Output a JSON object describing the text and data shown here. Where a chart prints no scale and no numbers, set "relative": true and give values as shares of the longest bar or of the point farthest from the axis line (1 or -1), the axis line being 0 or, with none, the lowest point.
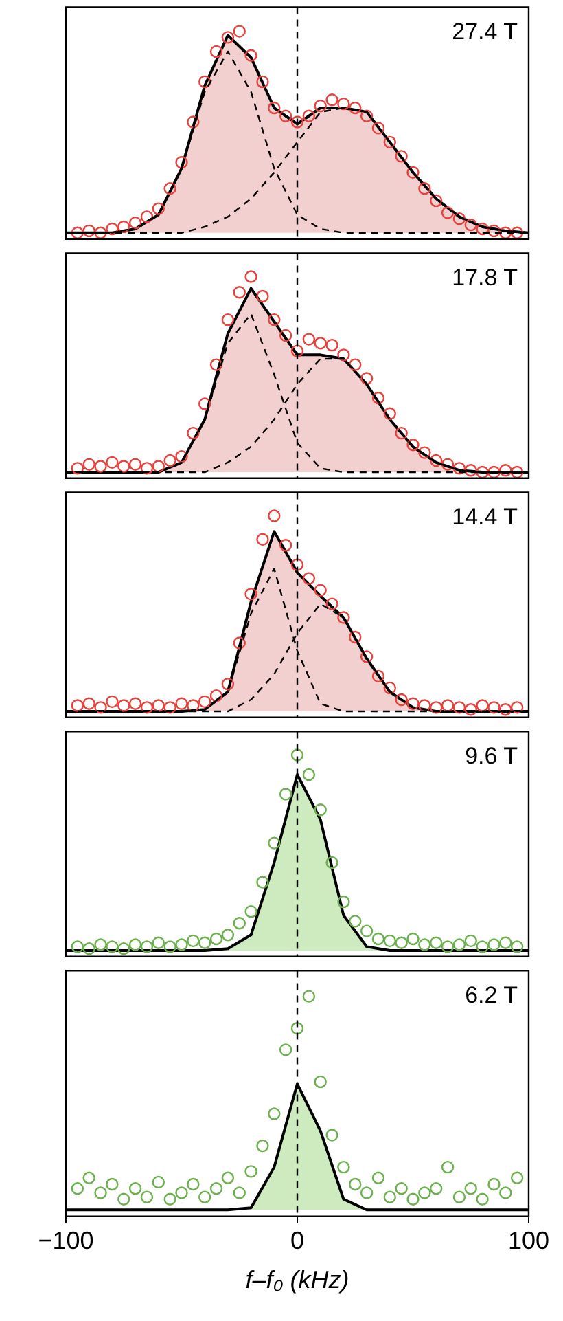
{
  "chart_data": [
    {
      "type": "line",
      "relative": true,
      "xlim": [
        -100,
        100
      ],
      "xticks": [
        -100,
        0,
        100
      ],
      "tick_labels": false,
      "annotations": [
        "27.4 T"
      ],
      "ref_lines": [
        {
          "axis": "x",
          "value": 0,
          "color": "#000000",
          "line_style": "dashed"
        }
      ],
      "series": [
        {
          "type": "scatter",
          "color": "#e8413c",
          "marker": "circle",
          "x": [
            -95,
            -90,
            -85,
            -80,
            -75,
            -70,
            -65,
            -60,
            -55,
            -50,
            -45,
            -40,
            -35,
            -30,
            -25,
            -20,
            -15,
            -10,
            -5,
            0,
            5,
            10,
            15,
            20,
            25,
            30,
            35,
            40,
            45,
            50,
            55,
            60,
            65,
            70,
            75,
            80,
            85,
            90,
            95
          ],
          "values": [
            0,
            0.01,
            0,
            0.02,
            0.03,
            0.05,
            0.08,
            0.12,
            0.22,
            0.35,
            0.55,
            0.75,
            0.9,
            0.97,
            1,
            0.88,
            0.75,
            0.62,
            0.58,
            0.55,
            0.58,
            0.63,
            0.66,
            0.64,
            0.62,
            0.58,
            0.52,
            0.45,
            0.38,
            0.3,
            0.22,
            0.16,
            0.1,
            0.07,
            0.04,
            0.02,
            0.01,
            0,
            0
          ]
        },
        {
          "color": "#000000",
          "line_style": "dashed",
          "x": [
            -100,
            -90,
            -80,
            -70,
            -60,
            -50,
            -40,
            -30,
            -20,
            -10,
            0,
            10,
            20,
            30,
            40,
            50,
            60,
            70,
            80,
            90,
            100
          ],
          "values": [
            0,
            0,
            0,
            0.02,
            0.09,
            0.32,
            0.7,
            0.9,
            0.7,
            0.32,
            0.09,
            0.02,
            0,
            0,
            0,
            0,
            0,
            0,
            0,
            0,
            0
          ]
        },
        {
          "color": "#000000",
          "line_style": "dashed",
          "x": [
            -100,
            -90,
            -80,
            -70,
            -60,
            -50,
            -40,
            -30,
            -20,
            -10,
            0,
            10,
            20,
            30,
            40,
            50,
            60,
            70,
            80,
            90,
            100
          ],
          "values": [
            0,
            0,
            0,
            0,
            0,
            0,
            0.03,
            0.08,
            0.17,
            0.3,
            0.45,
            0.6,
            0.62,
            0.6,
            0.45,
            0.3,
            0.17,
            0.08,
            0.03,
            0.01,
            0
          ]
        },
        {
          "type": "area",
          "color": "#f2d0d0",
          "x": [
            -100,
            -90,
            -80,
            -70,
            -60,
            -50,
            -40,
            -30,
            -20,
            -10,
            0,
            10,
            20,
            30,
            40,
            50,
            60,
            70,
            80,
            90,
            100
          ],
          "values": [
            0,
            0,
            0,
            0.02,
            0.09,
            0.32,
            0.73,
            0.98,
            0.87,
            0.62,
            0.54,
            0.62,
            0.62,
            0.6,
            0.45,
            0.3,
            0.17,
            0.08,
            0.03,
            0.01,
            0
          ]
        }
      ]
    },
    {
      "type": "line",
      "relative": true,
      "xlim": [
        -100,
        100
      ],
      "xticks": [
        -100,
        0,
        100
      ],
      "tick_labels": false,
      "annotations": [
        "17.8 T"
      ],
      "ref_lines": [
        {
          "axis": "x",
          "value": 0,
          "color": "#000000",
          "line_style": "dashed"
        }
      ],
      "series": [
        {
          "type": "scatter",
          "color": "#e8413c",
          "marker": "circle",
          "x": [
            -95,
            -90,
            -85,
            -80,
            -75,
            -70,
            -65,
            -60,
            -55,
            -50,
            -45,
            -40,
            -35,
            -30,
            -25,
            -20,
            -15,
            -10,
            -5,
            0,
            5,
            10,
            15,
            20,
            25,
            30,
            35,
            40,
            45,
            50,
            55,
            60,
            65,
            70,
            75,
            80,
            85,
            90,
            95
          ],
          "values": [
            0.02,
            0.04,
            0.03,
            0.05,
            0.03,
            0.04,
            0.02,
            0.03,
            0.06,
            0.08,
            0.2,
            0.35,
            0.55,
            0.78,
            0.92,
            1,
            0.9,
            0.78,
            0.7,
            0.62,
            0.68,
            0.66,
            0.65,
            0.6,
            0.55,
            0.48,
            0.38,
            0.3,
            0.2,
            0.14,
            0.1,
            0.06,
            0.04,
            0.02,
            0.01,
            0,
            0,
            0.01,
            0
          ]
        },
        {
          "color": "#000000",
          "line_style": "dashed",
          "x": [
            -100,
            -90,
            -80,
            -70,
            -60,
            -50,
            -40,
            -30,
            -20,
            -10,
            0,
            10,
            20,
            30,
            40,
            50,
            60,
            70,
            80,
            90,
            100
          ],
          "values": [
            0,
            0,
            0,
            0,
            0,
            0.05,
            0.27,
            0.66,
            0.81,
            0.5,
            0.15,
            0.02,
            0,
            0,
            0,
            0,
            0,
            0,
            0,
            0,
            0
          ]
        },
        {
          "color": "#000000",
          "line_style": "dashed",
          "x": [
            -100,
            -90,
            -80,
            -70,
            -60,
            -50,
            -40,
            -30,
            -20,
            -10,
            0,
            10,
            20,
            30,
            40,
            50,
            60,
            70,
            80,
            90,
            100
          ],
          "values": [
            0,
            0,
            0,
            0,
            0,
            0,
            0,
            0.05,
            0.13,
            0.27,
            0.45,
            0.58,
            0.58,
            0.45,
            0.27,
            0.13,
            0.05,
            0.01,
            0,
            0,
            0
          ]
        },
        {
          "type": "area",
          "color": "#f2d0d0",
          "x": [
            -100,
            -90,
            -80,
            -70,
            -60,
            -50,
            -40,
            -30,
            -20,
            -10,
            0,
            10,
            20,
            30,
            40,
            50,
            60,
            70,
            80,
            90,
            100
          ],
          "values": [
            0,
            0,
            0,
            0,
            0,
            0.05,
            0.27,
            0.71,
            0.94,
            0.77,
            0.6,
            0.6,
            0.58,
            0.45,
            0.27,
            0.13,
            0.05,
            0.01,
            0,
            0,
            0
          ]
        }
      ]
    },
    {
      "type": "line",
      "relative": true,
      "xlim": [
        -100,
        100
      ],
      "xticks": [
        -100,
        0,
        100
      ],
      "tick_labels": false,
      "annotations": [
        "14.4 T"
      ],
      "ref_lines": [
        {
          "axis": "x",
          "value": 0,
          "color": "#000000",
          "line_style": "dashed"
        }
      ],
      "series": [
        {
          "type": "scatter",
          "color": "#e8413c",
          "marker": "circle",
          "x": [
            -95,
            -90,
            -85,
            -80,
            -75,
            -70,
            -65,
            -60,
            -55,
            -50,
            -45,
            -40,
            -35,
            -30,
            -25,
            -20,
            -15,
            -10,
            -5,
            0,
            5,
            10,
            15,
            20,
            25,
            30,
            35,
            40,
            45,
            50,
            55,
            60,
            65,
            70,
            75,
            80,
            85,
            90,
            95
          ],
          "values": [
            0.03,
            0.04,
            0.02,
            0.05,
            0.03,
            0.04,
            0.02,
            0.03,
            0.02,
            0.04,
            0.03,
            0.05,
            0.08,
            0.14,
            0.35,
            0.6,
            0.88,
            1,
            0.85,
            0.75,
            0.68,
            0.62,
            0.55,
            0.48,
            0.38,
            0.28,
            0.18,
            0.12,
            0.06,
            0.04,
            0.03,
            0.02,
            0.03,
            0.02,
            0.01,
            0.03,
            0.02,
            0.01,
            0.02
          ]
        },
        {
          "color": "#000000",
          "line_style": "dashed",
          "x": [
            -100,
            -90,
            -80,
            -70,
            -60,
            -50,
            -40,
            -30,
            -20,
            -10,
            0,
            10,
            20,
            30,
            40,
            50,
            60,
            70,
            80,
            90,
            100
          ],
          "values": [
            0,
            0,
            0,
            0,
            0,
            0,
            0.01,
            0.1,
            0.5,
            0.73,
            0.31,
            0.04,
            0,
            0,
            0,
            0,
            0,
            0,
            0,
            0,
            0
          ]
        },
        {
          "color": "#000000",
          "line_style": "dashed",
          "x": [
            -100,
            -90,
            -80,
            -70,
            -60,
            -50,
            -40,
            -30,
            -20,
            -10,
            0,
            10,
            20,
            30,
            40,
            50,
            60,
            70,
            80,
            90,
            100
          ],
          "values": [
            0,
            0,
            0,
            0,
            0,
            0,
            0,
            0,
            0.06,
            0.19,
            0.4,
            0.55,
            0.48,
            0.27,
            0.1,
            0.02,
            0,
            0,
            0,
            0,
            0
          ]
        },
        {
          "type": "area",
          "color": "#f2d0d0",
          "x": [
            -100,
            -90,
            -80,
            -70,
            -60,
            -50,
            -40,
            -30,
            -20,
            -10,
            0,
            10,
            20,
            30,
            40,
            50,
            60,
            70,
            80,
            90,
            100
          ],
          "values": [
            0,
            0,
            0,
            0,
            0,
            0,
            0.01,
            0.1,
            0.56,
            0.92,
            0.71,
            0.59,
            0.48,
            0.27,
            0.1,
            0.02,
            0,
            0,
            0,
            0,
            0
          ]
        }
      ]
    },
    {
      "type": "line",
      "relative": true,
      "xlim": [
        -100,
        100
      ],
      "xticks": [
        -100,
        0,
        100
      ],
      "tick_labels": false,
      "annotations": [
        "9.6 T"
      ],
      "ref_lines": [
        {
          "axis": "x",
          "value": 0,
          "color": "#000000",
          "line_style": "dashed"
        }
      ],
      "series": [
        {
          "type": "scatter",
          "color": "#6ab04c",
          "marker": "circle",
          "x": [
            -95,
            -90,
            -85,
            -80,
            -75,
            -70,
            -65,
            -60,
            -55,
            -50,
            -45,
            -40,
            -35,
            -30,
            -25,
            -20,
            -15,
            -10,
            -5,
            0,
            5,
            10,
            15,
            20,
            25,
            30,
            35,
            40,
            45,
            50,
            55,
            60,
            65,
            70,
            75,
            80,
            85,
            90,
            95
          ],
          "values": [
            0.02,
            0.01,
            0.03,
            0.02,
            0.01,
            0.03,
            0.02,
            0.04,
            0.02,
            0.03,
            0.05,
            0.04,
            0.06,
            0.08,
            0.14,
            0.2,
            0.35,
            0.55,
            0.8,
            1,
            0.9,
            0.72,
            0.45,
            0.25,
            0.15,
            0.1,
            0.06,
            0.05,
            0.04,
            0.06,
            0.03,
            0.04,
            0.02,
            0.03,
            0.05,
            0.02,
            0.03,
            0.04,
            0.02
          ]
        },
        {
          "type": "area",
          "color": "#cdebbf",
          "x": [
            -100,
            -90,
            -80,
            -70,
            -60,
            -50,
            -40,
            -30,
            -20,
            -10,
            0,
            10,
            20,
            30,
            40,
            50,
            60,
            70,
            80,
            90,
            100
          ],
          "values": [
            0,
            0,
            0,
            0,
            0,
            0,
            0,
            0.01,
            0.08,
            0.45,
            0.9,
            0.67,
            0.18,
            0.02,
            0,
            0,
            0,
            0,
            0,
            0,
            0
          ]
        }
      ]
    },
    {
      "type": "line",
      "relative": true,
      "xlim": [
        -100,
        100
      ],
      "xticks": [
        -100,
        0,
        100
      ],
      "tick_labels": "x",
      "xlabel": "f–f₀ (kHz)",
      "annotations": [
        "6.2 T"
      ],
      "ref_lines": [
        {
          "axis": "x",
          "value": 0,
          "color": "#000000",
          "line_style": "dashed"
        }
      ],
      "series": [
        {
          "type": "scatter",
          "color": "#6ab04c",
          "marker": "circle",
          "x": [
            -95,
            -90,
            -85,
            -80,
            -75,
            -70,
            -65,
            -60,
            -55,
            -50,
            -45,
            -40,
            -35,
            -30,
            -25,
            -20,
            -15,
            -10,
            -5,
            0,
            5,
            10,
            15,
            20,
            25,
            30,
            35,
            40,
            45,
            50,
            55,
            60,
            65,
            70,
            75,
            80,
            85,
            90,
            95
          ],
          "values": [
            0.1,
            0.15,
            0.08,
            0.12,
            0.05,
            0.1,
            0.06,
            0.13,
            0.05,
            0.08,
            0.12,
            0.06,
            0.1,
            0.15,
            0.08,
            0.18,
            0.3,
            0.45,
            0.75,
            0.85,
            1,
            0.6,
            0.35,
            0.2,
            0.12,
            0.08,
            0.15,
            0.06,
            0.1,
            0.05,
            0.08,
            0.1,
            0.2,
            0.06,
            0.1,
            0.05,
            0.12,
            0.08,
            0.15
          ]
        },
        {
          "type": "area",
          "color": "#cdebbf",
          "x": [
            -100,
            -90,
            -80,
            -70,
            -60,
            -50,
            -40,
            -30,
            -20,
            -10,
            0,
            10,
            20,
            30,
            40,
            50,
            60,
            70,
            80,
            90,
            100
          ],
          "values": [
            0,
            0,
            0,
            0,
            0,
            0,
            0,
            0,
            0.01,
            0.2,
            0.59,
            0.37,
            0.05,
            0,
            0,
            0,
            0,
            0,
            0,
            0,
            0
          ]
        }
      ]
    }
  ]
}
